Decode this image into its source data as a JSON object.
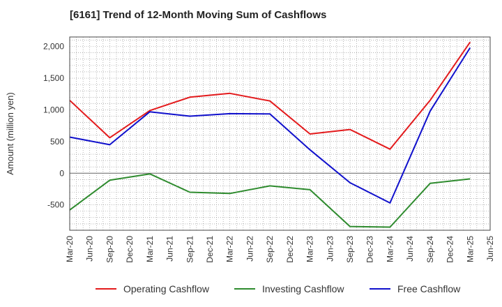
{
  "chart_data": {
    "type": "line",
    "title": "[6161]  Trend of 12-Month Moving Sum of Cashflows",
    "xlabel": "",
    "ylabel": "Amount (million yen)",
    "ylim": [
      -900,
      2150
    ],
    "yticks": [
      2000,
      1500,
      1000,
      500,
      0,
      -500
    ],
    "ytick_labels": [
      "2,000",
      "1,500",
      "1,000",
      "500",
      "0",
      "-500"
    ],
    "categories": [
      "Mar-20",
      "Jun-20",
      "Sep-20",
      "Dec-20",
      "Mar-21",
      "Jun-21",
      "Sep-21",
      "Dec-21",
      "Mar-22",
      "Jun-22",
      "Sep-22",
      "Dec-22",
      "Mar-23",
      "Jun-23",
      "Sep-23",
      "Dec-23",
      "Mar-24",
      "Jun-24",
      "Sep-24",
      "Dec-24",
      "Mar-25",
      "Jun-25"
    ],
    "grid": true,
    "legend_position": "bottom",
    "series": [
      {
        "name": "Operating Cashflow",
        "color": "#e31a1c",
        "points": [
          [
            "Mar-20",
            1150
          ],
          [
            "Sep-20",
            560
          ],
          [
            "Mar-21",
            990
          ],
          [
            "Sep-21",
            1200
          ],
          [
            "Mar-22",
            1260
          ],
          [
            "Sep-22",
            1140
          ],
          [
            "Mar-23",
            620
          ],
          [
            "Sep-23",
            690
          ],
          [
            "Mar-24",
            380
          ],
          [
            "Sep-24",
            1150
          ],
          [
            "Mar-25",
            2070
          ]
        ]
      },
      {
        "name": "Investing Cashflow",
        "color": "#2e8b2e",
        "points": [
          [
            "Mar-20",
            -580
          ],
          [
            "Sep-20",
            -110
          ],
          [
            "Mar-21",
            -10
          ],
          [
            "Sep-21",
            -300
          ],
          [
            "Mar-22",
            -320
          ],
          [
            "Sep-22",
            -200
          ],
          [
            "Mar-23",
            -260
          ],
          [
            "Sep-23",
            -840
          ],
          [
            "Mar-24",
            -850
          ],
          [
            "Sep-24",
            -160
          ],
          [
            "Mar-25",
            -90
          ]
        ]
      },
      {
        "name": "Free Cashflow",
        "color": "#1010cc",
        "points": [
          [
            "Mar-20",
            570
          ],
          [
            "Sep-20",
            450
          ],
          [
            "Mar-21",
            970
          ],
          [
            "Sep-21",
            900
          ],
          [
            "Mar-22",
            940
          ],
          [
            "Sep-22",
            935
          ],
          [
            "Mar-23",
            370
          ],
          [
            "Sep-23",
            -150
          ],
          [
            "Mar-24",
            -470
          ],
          [
            "Sep-24",
            980
          ],
          [
            "Mar-25",
            1980
          ]
        ]
      }
    ]
  }
}
